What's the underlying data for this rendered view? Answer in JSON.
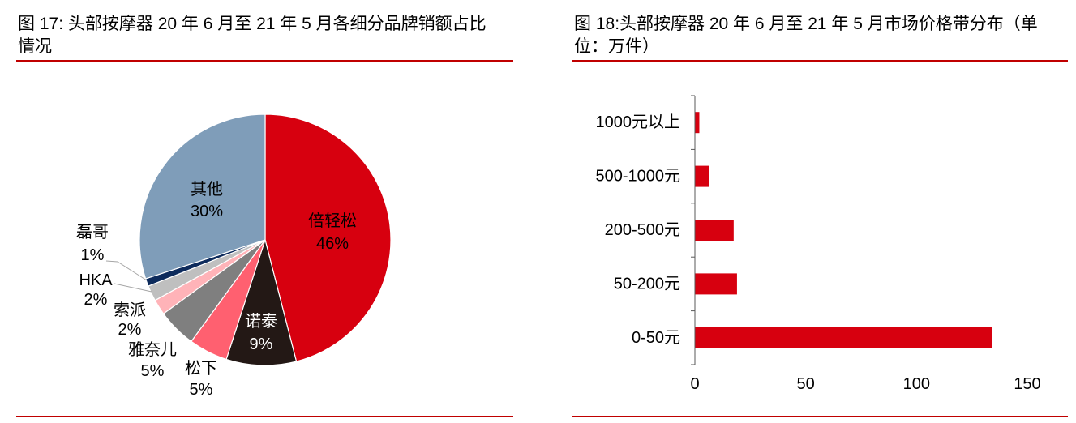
{
  "theme": {
    "rule_color": "#C00000"
  },
  "chart_data": [
    {
      "type": "pie",
      "title": "图 17: 头部按摩器 20 年 6 月至 21 年 5 月各细分品牌销额占比情况",
      "labels": [
        "倍轻松",
        "诺泰",
        "松下",
        "雅奈儿",
        "索派",
        "HKA",
        "磊哥",
        "其他"
      ],
      "values": [
        46,
        9,
        5,
        5,
        2,
        2,
        1,
        30
      ],
      "colors": [
        "#D7000F",
        "#231815",
        "#FF6070",
        "#7F7F7F",
        "#FFB3B8",
        "#BFBFBF",
        "#0D2B5C",
        "#7F9DB9"
      ]
    },
    {
      "type": "bar",
      "orientation": "horizontal",
      "title": "图 18:头部按摩器 20 年 6 月至 21 年 5 月市场价格带分布（单位：万件）",
      "categories": [
        "1000元以上",
        "500-1000元",
        "200-500元",
        "50-200元",
        "0-50元"
      ],
      "values": [
        2,
        6.5,
        17.5,
        19,
        134
      ],
      "xlim": [
        0,
        150
      ],
      "xticks": [
        0,
        50,
        100,
        150
      ],
      "xlabel": "",
      "ylabel": "",
      "grid": false,
      "color": "#D7000F"
    }
  ]
}
